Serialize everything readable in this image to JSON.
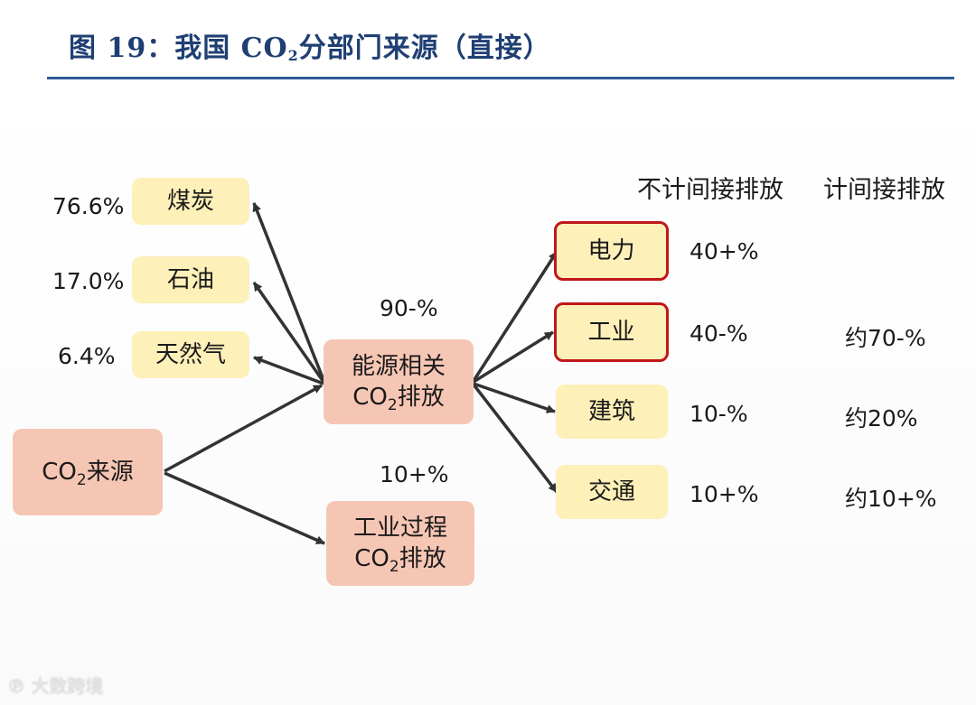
{
  "title": {
    "main": "图 19：我国 CO",
    "sub": "2",
    "rest": "分部门来源（直接）"
  },
  "headers": {
    "without_indirect": "不计间接排放",
    "with_indirect": "计间接排放"
  },
  "sources": [
    {
      "pct": "76.6%",
      "label": "煤炭"
    },
    {
      "pct": "17.0%",
      "label": "石油"
    },
    {
      "pct": "6.4%",
      "label": "天然气"
    }
  ],
  "root": {
    "pre": "CO",
    "sub": "2",
    "post": "来源"
  },
  "energy": {
    "line1": "能源相关",
    "pre": "CO",
    "sub": "2",
    "post": "排放",
    "share": "90-%"
  },
  "process": {
    "line1": "工业过程",
    "pre": "CO",
    "sub": "2",
    "post": "排放",
    "share": "10+%"
  },
  "sectors": [
    {
      "label": "电力",
      "direct": "40+%",
      "indirect": ""
    },
    {
      "label": "工业",
      "direct": "40-%",
      "indirect": "约70-%"
    },
    {
      "label": "建筑",
      "direct": "10-%",
      "indirect": "约20%"
    },
    {
      "label": "交通",
      "direct": "10+%",
      "indirect": "约10+%"
    }
  ],
  "colors": {
    "title": "#1f3f73",
    "rule": "#2f5d97",
    "yellow": "#fdf0b8",
    "pink": "#f6c6b4",
    "highlight": "#c0171b",
    "arrow": "#333333"
  },
  "watermark": "大数跨境"
}
